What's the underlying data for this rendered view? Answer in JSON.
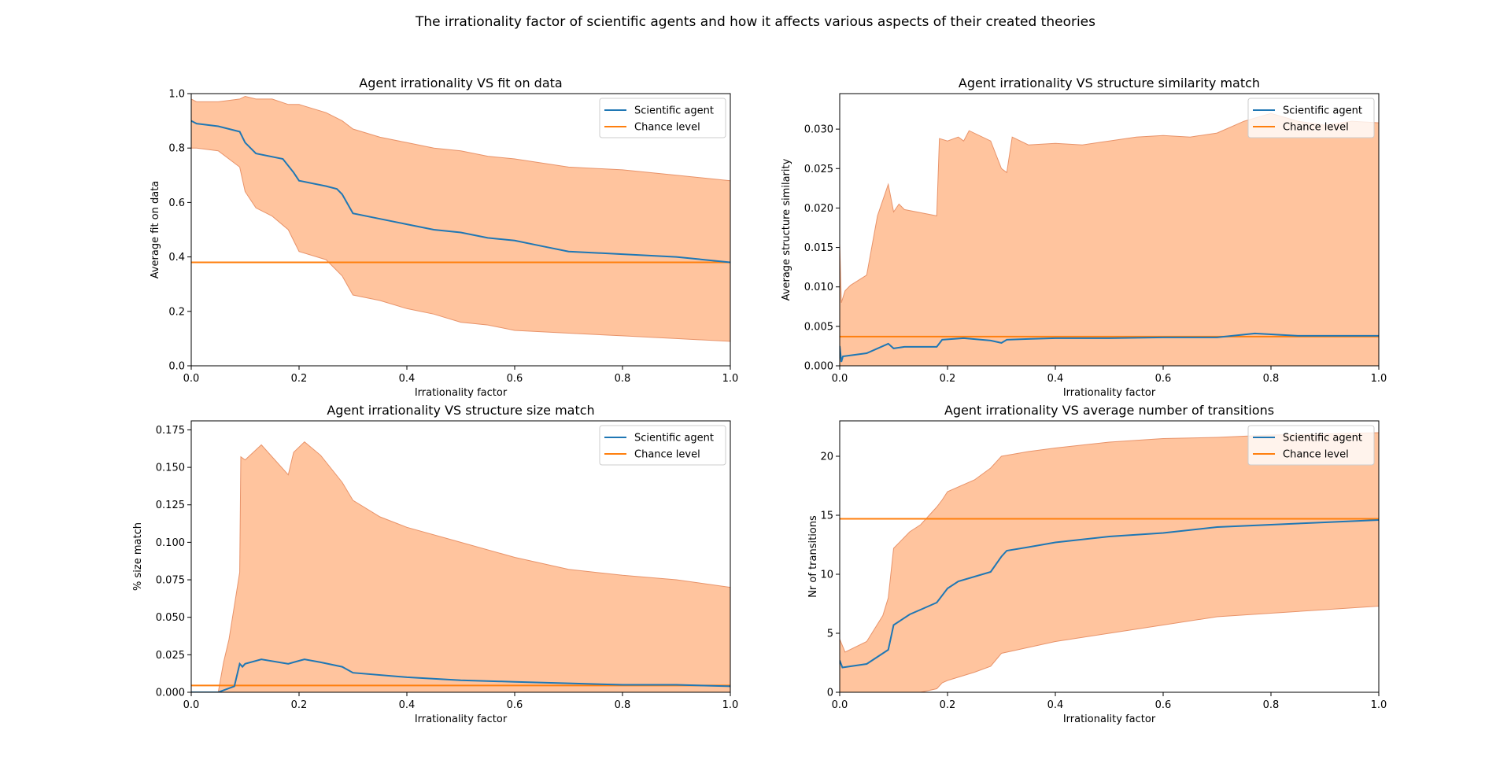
{
  "figure": {
    "suptitle": "The irrationality factor of scientific agents and how it affects various aspects of their created theories"
  },
  "colors": {
    "agent_line": "#1f77b4",
    "chance_line": "#ff7f0e",
    "band_fill": "#ffc49e",
    "band_edge": "#e8936a"
  },
  "chart_data": [
    {
      "type": "line",
      "title": "Agent irrationality VS fit on data",
      "xlabel": "Irrationality factor",
      "ylabel": "Average fit on data",
      "xlim": [
        0,
        1
      ],
      "ylim": [
        0,
        1
      ],
      "xticks": [
        "0.0",
        "0.2",
        "0.4",
        "0.6",
        "0.8",
        "1.0"
      ],
      "yticks": [
        "0.0",
        "0.2",
        "0.4",
        "0.6",
        "0.8",
        "1.0"
      ],
      "legend": {
        "position": "top-right",
        "entries": [
          "Scientific agent",
          "Chance level"
        ]
      },
      "chance_level": 0.38,
      "series": [
        {
          "name": "Scientific agent",
          "x": [
            0,
            0.01,
            0.05,
            0.09,
            0.1,
            0.12,
            0.17,
            0.19,
            0.2,
            0.25,
            0.27,
            0.28,
            0.3,
            0.35,
            0.4,
            0.45,
            0.5,
            0.55,
            0.6,
            0.65,
            0.7,
            0.8,
            0.9,
            1.0
          ],
          "y": [
            0.9,
            0.89,
            0.88,
            0.86,
            0.82,
            0.78,
            0.76,
            0.71,
            0.68,
            0.66,
            0.65,
            0.63,
            0.56,
            0.54,
            0.52,
            0.5,
            0.49,
            0.47,
            0.46,
            0.44,
            0.42,
            0.41,
            0.4,
            0.38
          ]
        }
      ],
      "band": {
        "x": [
          0,
          0.01,
          0.05,
          0.09,
          0.1,
          0.12,
          0.15,
          0.18,
          0.2,
          0.25,
          0.28,
          0.3,
          0.35,
          0.4,
          0.45,
          0.5,
          0.55,
          0.6,
          0.7,
          0.8,
          0.9,
          1.0
        ],
        "upper": [
          0.98,
          0.97,
          0.97,
          0.98,
          0.99,
          0.98,
          0.98,
          0.96,
          0.96,
          0.93,
          0.9,
          0.87,
          0.84,
          0.82,
          0.8,
          0.79,
          0.77,
          0.76,
          0.73,
          0.72,
          0.7,
          0.68
        ],
        "lower": [
          0.8,
          0.8,
          0.79,
          0.73,
          0.64,
          0.58,
          0.55,
          0.5,
          0.42,
          0.39,
          0.33,
          0.26,
          0.24,
          0.21,
          0.19,
          0.16,
          0.15,
          0.13,
          0.12,
          0.11,
          0.1,
          0.09
        ]
      }
    },
    {
      "type": "line",
      "title": "Agent irrationality VS structure similarity match",
      "xlabel": "Irrationality factor",
      "ylabel": "Average structure similarity",
      "xlim": [
        0,
        1
      ],
      "ylim": [
        0,
        0.0345
      ],
      "xticks": [
        "0.0",
        "0.2",
        "0.4",
        "0.6",
        "0.8",
        "1.0"
      ],
      "yticks": [
        "0.000",
        "0.005",
        "0.010",
        "0.015",
        "0.020",
        "0.025",
        "0.030"
      ],
      "legend": {
        "position": "top-right",
        "entries": [
          "Scientific agent",
          "Chance level"
        ]
      },
      "chance_level": 0.0037,
      "series": [
        {
          "name": "Scientific agent",
          "x": [
            0,
            0.003,
            0.006,
            0.05,
            0.09,
            0.1,
            0.12,
            0.18,
            0.19,
            0.23,
            0.28,
            0.3,
            0.31,
            0.35,
            0.4,
            0.5,
            0.6,
            0.7,
            0.77,
            0.85,
            1.0
          ],
          "y": [
            0.0025,
            0.0005,
            0.0012,
            0.0016,
            0.0028,
            0.0022,
            0.0024,
            0.0024,
            0.0033,
            0.0035,
            0.0032,
            0.0029,
            0.0033,
            0.0034,
            0.0035,
            0.0035,
            0.0036,
            0.0036,
            0.0041,
            0.0038,
            0.0038
          ]
        }
      ],
      "band": {
        "x": [
          0,
          0.003,
          0.01,
          0.02,
          0.05,
          0.07,
          0.09,
          0.1,
          0.11,
          0.12,
          0.18,
          0.185,
          0.2,
          0.22,
          0.23,
          0.24,
          0.28,
          0.3,
          0.31,
          0.32,
          0.35,
          0.4,
          0.45,
          0.5,
          0.55,
          0.6,
          0.65,
          0.7,
          0.75,
          0.8,
          0.85,
          0.9,
          0.95,
          1.0
        ],
        "upper": [
          0.0155,
          0.008,
          0.0095,
          0.0102,
          0.0115,
          0.019,
          0.023,
          0.0195,
          0.0205,
          0.0198,
          0.019,
          0.0288,
          0.0285,
          0.029,
          0.0285,
          0.0298,
          0.0285,
          0.025,
          0.0245,
          0.029,
          0.028,
          0.0282,
          0.028,
          0.0285,
          0.029,
          0.0292,
          0.029,
          0.0295,
          0.031,
          0.032,
          0.031,
          0.0305,
          0.031,
          0.0308
        ],
        "lower": [
          0,
          0,
          0,
          0,
          0,
          0,
          0,
          0,
          0,
          0,
          0,
          0,
          0,
          0,
          0,
          0,
          0,
          0,
          0,
          0,
          0,
          0,
          0,
          0,
          0,
          0,
          0,
          0,
          0,
          0,
          0,
          0,
          0,
          0
        ]
      }
    },
    {
      "type": "line",
      "title": "Agent irrationality VS structure size match",
      "xlabel": "Irrationality factor",
      "ylabel": "% size match",
      "xlim": [
        0,
        1
      ],
      "ylim": [
        0,
        0.181
      ],
      "xticks": [
        "0.0",
        "0.2",
        "0.4",
        "0.6",
        "0.8",
        "1.0"
      ],
      "yticks": [
        "0.000",
        "0.025",
        "0.050",
        "0.075",
        "0.100",
        "0.125",
        "0.150",
        "0.175"
      ],
      "legend": {
        "position": "top-right",
        "entries": [
          "Scientific agent",
          "Chance level"
        ]
      },
      "chance_level": 0.0045,
      "series": [
        {
          "name": "Scientific agent",
          "x": [
            0,
            0.05,
            0.08,
            0.09,
            0.095,
            0.1,
            0.13,
            0.18,
            0.19,
            0.21,
            0.24,
            0.28,
            0.3,
            0.4,
            0.5,
            0.6,
            0.7,
            0.8,
            0.9,
            1.0
          ],
          "y": [
            0,
            0,
            0.004,
            0.019,
            0.017,
            0.019,
            0.022,
            0.019,
            0.02,
            0.022,
            0.02,
            0.017,
            0.013,
            0.01,
            0.008,
            0.007,
            0.006,
            0.005,
            0.005,
            0.004
          ]
        }
      ],
      "band": {
        "x": [
          0,
          0.05,
          0.06,
          0.07,
          0.09,
          0.092,
          0.1,
          0.13,
          0.18,
          0.19,
          0.21,
          0.24,
          0.28,
          0.3,
          0.35,
          0.4,
          0.5,
          0.6,
          0.7,
          0.8,
          0.9,
          1.0
        ],
        "upper": [
          0,
          0,
          0.02,
          0.035,
          0.08,
          0.157,
          0.155,
          0.165,
          0.145,
          0.16,
          0.167,
          0.158,
          0.14,
          0.128,
          0.117,
          0.11,
          0.1,
          0.09,
          0.082,
          0.078,
          0.075,
          0.07
        ],
        "lower": [
          0,
          0,
          0,
          0,
          0,
          0,
          0,
          0,
          0,
          0,
          0,
          0,
          0,
          0,
          0,
          0,
          0,
          0,
          0,
          0,
          0,
          0
        ]
      }
    },
    {
      "type": "line",
      "title": "Agent irrationality VS average number of transitions",
      "xlabel": "Irrationality factor",
      "ylabel": "Nr of transitions",
      "xlim": [
        0,
        1
      ],
      "ylim": [
        0,
        23
      ],
      "xticks": [
        "0.0",
        "0.2",
        "0.4",
        "0.6",
        "0.8",
        "1.0"
      ],
      "yticks": [
        "0",
        "5",
        "10",
        "15",
        "20"
      ],
      "legend": {
        "position": "top-right",
        "entries": [
          "Scientific agent",
          "Chance level"
        ]
      },
      "chance_level": 14.7,
      "series": [
        {
          "name": "Scientific agent",
          "x": [
            0,
            0.005,
            0.05,
            0.09,
            0.1,
            0.13,
            0.15,
            0.18,
            0.2,
            0.22,
            0.25,
            0.28,
            0.3,
            0.31,
            0.35,
            0.4,
            0.5,
            0.6,
            0.7,
            0.8,
            0.9,
            1.0
          ],
          "y": [
            2.7,
            2.1,
            2.4,
            3.6,
            5.7,
            6.6,
            7.0,
            7.6,
            8.8,
            9.4,
            9.8,
            10.2,
            11.5,
            12.0,
            12.3,
            12.7,
            13.2,
            13.5,
            14.0,
            14.2,
            14.4,
            14.6
          ]
        }
      ],
      "band": {
        "x": [
          0,
          0.01,
          0.05,
          0.08,
          0.09,
          0.1,
          0.13,
          0.15,
          0.18,
          0.19,
          0.2,
          0.25,
          0.28,
          0.3,
          0.35,
          0.4,
          0.5,
          0.6,
          0.7,
          0.8,
          0.9,
          1.0
        ],
        "upper": [
          4.5,
          3.4,
          4.3,
          6.5,
          8.0,
          12.2,
          13.6,
          14.2,
          15.7,
          16.3,
          17.0,
          18.0,
          19.0,
          20.0,
          20.4,
          20.7,
          21.2,
          21.5,
          21.6,
          21.8,
          21.9,
          22.0
        ],
        "lower": [
          0,
          0,
          0,
          0,
          0,
          0,
          0,
          0,
          0.3,
          0.8,
          1.0,
          1.7,
          2.2,
          3.3,
          3.8,
          4.3,
          5.0,
          5.7,
          6.4,
          6.7,
          7.0,
          7.3
        ]
      }
    }
  ]
}
